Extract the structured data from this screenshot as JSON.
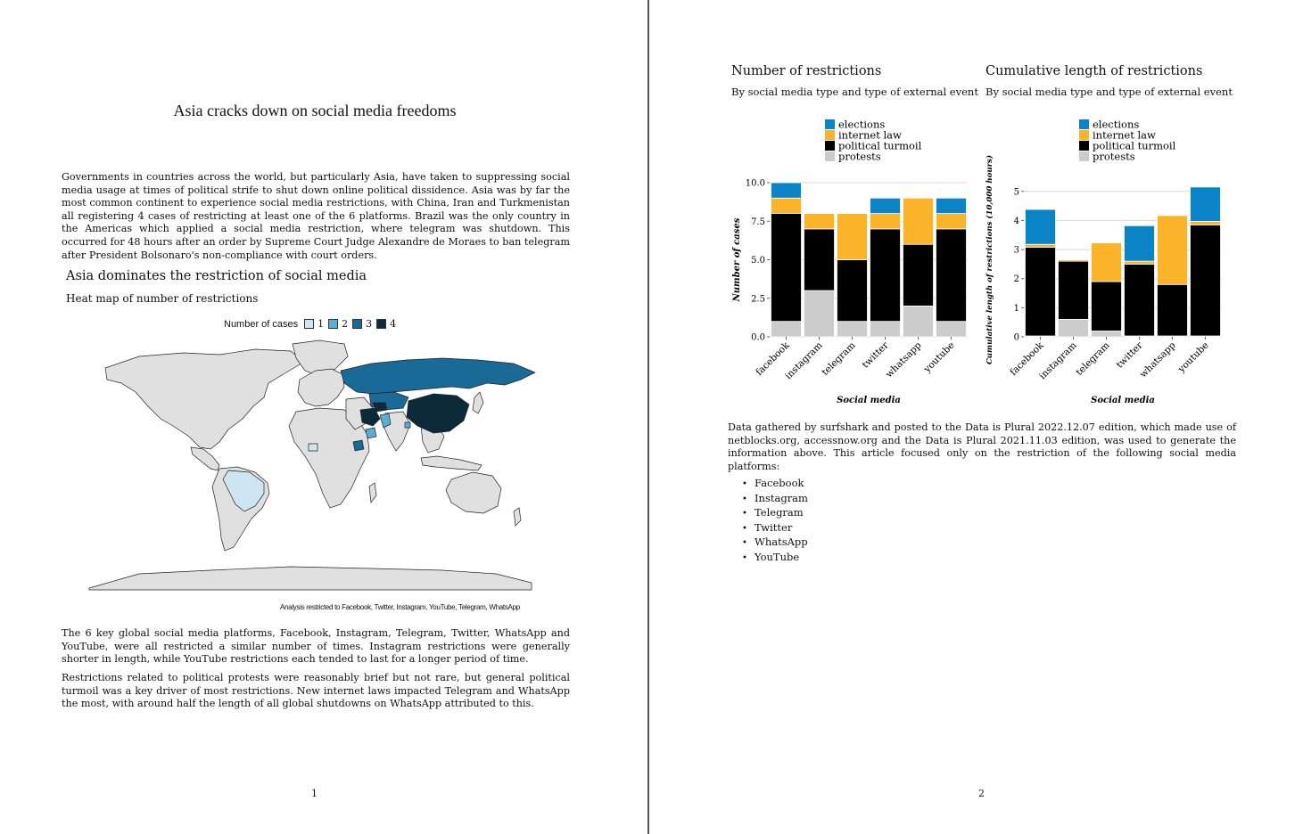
{
  "page1": {
    "title": "Asia cracks down on social media freedoms",
    "intro": "Governments in countries across the world, but particularly Asia, have taken to suppressing social media usage at times of political strife to shut down online political dissidence. Asia was by far the most common continent to experience social media restrictions, with China, Iran and Turkmenistan all registering 4 cases of restricting at least one of the 6 platforms. Brazil was the only country in the Americas which applied a social media restriction, where telegram was shutdown. This occurred for 48 hours after an order by Supreme Court Judge Alexandre de Moraes to ban telegram after President Bolsonaro's non-compliance with court orders.",
    "section_title": "Asia dominates the restriction of social media",
    "section_subtitle": "Heat map of number of restrictions",
    "map_legend": {
      "label": "Number of cases",
      "items": [
        {
          "value": "1",
          "color": "#cde6f2"
        },
        {
          "value": "2",
          "color": "#5aaed6"
        },
        {
          "value": "3",
          "color": "#1a6a97"
        },
        {
          "value": "4",
          "color": "#0d2a3a"
        }
      ]
    },
    "map_caption": "Analysis restricted to Facebook, Twitter, Instagram, YouTube, Telegram, WhatsApp",
    "para2": "The 6 key global social media platforms, Facebook, Instagram, Telegram, Twitter, WhatsApp and YouTube, were all restricted a similar number of times. Instagram restrictions were generally shorter in length, while YouTube restrictions each tended to last for a longer period of time.",
    "para3": "Restrictions related to political protests were reasonably brief but not rare, but general political turmoil was a key driver of most restrictions. New internet laws impacted Telegram and WhatsApp the most, with around half the length of all global shutdowns on WhatsApp attributed to this.",
    "page_number": "1"
  },
  "page2": {
    "note": "Data gathered by surfshark and posted to the Data is Plural 2022.12.07 edition, which made use of netblocks.org, accessnow.org and the Data is Plural 2021.11.03 edition, was used to generate the information above. This article focused only on the restriction of the following social media platforms:",
    "platforms": [
      "Facebook",
      "Instagram",
      "Telegram",
      "Twitter",
      "WhatsApp",
      "YouTube"
    ],
    "page_number": "2"
  },
  "colors": {
    "elections": "#0a84c6",
    "internet_law": "#fbb42a",
    "political_turmoil": "#000000",
    "protests": "#cccccc"
  },
  "chart_data": [
    {
      "type": "bar",
      "stacked": true,
      "title": "Number of restrictions",
      "subtitle": "By social media type and type of external event",
      "xlabel": "Social media",
      "ylabel": "Number of cases",
      "ylim": [
        0,
        10
      ],
      "yticks": [
        "0.0",
        "2.5",
        "5.0",
        "7.5",
        "10.0"
      ],
      "ytick_values": [
        0,
        2.5,
        5,
        7.5,
        10
      ],
      "categories": [
        "facebook",
        "instagram",
        "telegram",
        "twitter",
        "whatsapp",
        "youtube"
      ],
      "legend": "top-center",
      "grid": true,
      "series": [
        {
          "name": "protests",
          "values": [
            1,
            3,
            1,
            1,
            2,
            1
          ]
        },
        {
          "name": "political turmoil",
          "values": [
            7,
            4,
            4,
            6,
            4,
            6
          ]
        },
        {
          "name": "internet law",
          "values": [
            1,
            1,
            3,
            1,
            3,
            1
          ]
        },
        {
          "name": "elections",
          "values": [
            1,
            0,
            0,
            1,
            0,
            1
          ]
        }
      ]
    },
    {
      "type": "bar",
      "stacked": true,
      "title": "Cumulative length of restrictions",
      "subtitle": "By social media type and type of external event",
      "xlabel": "Social media",
      "ylabel": "Cumulative length of restrictions (10,000 hours)",
      "ylim": [
        0,
        5.3
      ],
      "yticks": [
        "0",
        "1",
        "2",
        "3",
        "4",
        "5"
      ],
      "ytick_values": [
        0,
        1,
        2,
        3,
        4,
        5
      ],
      "categories": [
        "facebook",
        "instagram",
        "telegram",
        "twitter",
        "whatsapp",
        "youtube"
      ],
      "legend": "top-center",
      "grid": true,
      "series": [
        {
          "name": "protests",
          "values": [
            0.03,
            0.6,
            0.2,
            0.03,
            0.03,
            0.03
          ]
        },
        {
          "name": "political turmoil",
          "values": [
            3.05,
            2.0,
            1.7,
            2.47,
            1.77,
            3.82
          ]
        },
        {
          "name": "internet law",
          "values": [
            0.1,
            0.05,
            1.33,
            0.1,
            2.37,
            0.12
          ]
        },
        {
          "name": "elections",
          "values": [
            1.2,
            0,
            0,
            1.22,
            0,
            1.18
          ]
        }
      ]
    }
  ]
}
